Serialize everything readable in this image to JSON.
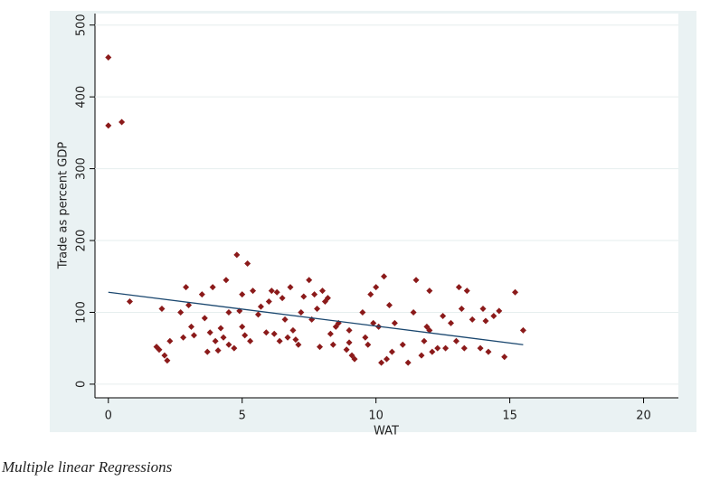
{
  "chart_data": {
    "type": "scatter",
    "x_label": "WAT",
    "y_label": "Trade as percent GDP",
    "caption": "Multiple linear Regressions",
    "x": [
      0,
      0,
      0.5,
      0.8,
      1.8,
      1.9,
      2,
      2.1,
      2.2,
      2.3,
      2.7,
      2.8,
      2.9,
      3,
      3.1,
      3.2,
      3.5,
      3.6,
      3.7,
      3.8,
      3.9,
      4,
      4.1,
      4.2,
      4.3,
      4.4,
      4.5,
      4.5,
      4.7,
      4.8,
      4.9,
      5,
      5,
      5.1,
      5.2,
      5.3,
      5.4,
      5.6,
      5.7,
      5.9,
      6,
      6.1,
      6.2,
      6.3,
      6.4,
      6.5,
      6.6,
      6.7,
      6.8,
      6.9,
      7,
      7.1,
      7.2,
      7.3,
      7.5,
      7.6,
      7.7,
      7.8,
      7.9,
      8,
      8.1,
      8.2,
      8.3,
      8.4,
      8.5,
      8.6,
      8.9,
      9,
      9,
      9.1,
      9.2,
      9.5,
      9.6,
      9.7,
      9.8,
      9.9,
      10,
      10.1,
      10.2,
      10.3,
      10.4,
      10.5,
      10.6,
      10.7,
      11,
      11.2,
      11.4,
      11.5,
      11.7,
      11.8,
      11.9,
      12,
      12,
      12.1,
      12.3,
      12.5,
      12.6,
      12.8,
      13,
      13.1,
      13.2,
      13.3,
      13.4,
      13.6,
      13.9,
      14,
      14.1,
      14.2,
      14.4,
      14.6,
      14.8,
      15.2,
      15.5
    ],
    "values": [
      455,
      360,
      365,
      115,
      52,
      48,
      105,
      40,
      33,
      60,
      100,
      65,
      135,
      110,
      80,
      68,
      125,
      92,
      45,
      72,
      135,
      60,
      47,
      78,
      65,
      145,
      55,
      100,
      50,
      180,
      102,
      80,
      125,
      68,
      168,
      60,
      130,
      97,
      108,
      72,
      115,
      130,
      70,
      128,
      60,
      120,
      90,
      65,
      135,
      75,
      62,
      55,
      100,
      122,
      145,
      90,
      125,
      105,
      52,
      130,
      115,
      120,
      70,
      55,
      80,
      85,
      48,
      75,
      58,
      40,
      35,
      100,
      65,
      55,
      125,
      85,
      135,
      80,
      30,
      150,
      35,
      110,
      45,
      85,
      55,
      30,
      100,
      145,
      40,
      60,
      80,
      75,
      130,
      45,
      50,
      95,
      50,
      85,
      60,
      135,
      105,
      50,
      130,
      90,
      50,
      105,
      88,
      45,
      95,
      102,
      38,
      128,
      75
    ],
    "color": "#8b1a1a",
    "fit": {
      "x": [
        0,
        15.5
      ],
      "values": [
        128,
        55
      ],
      "color": "#1a476f"
    },
    "xlim": [
      -0.5,
      21.3
    ],
    "ylim": [
      -19,
      516
    ],
    "xticks": [
      0,
      5,
      10,
      15,
      20
    ],
    "yticks": [
      0,
      100,
      200,
      300,
      400,
      500
    ],
    "grid": true
  }
}
